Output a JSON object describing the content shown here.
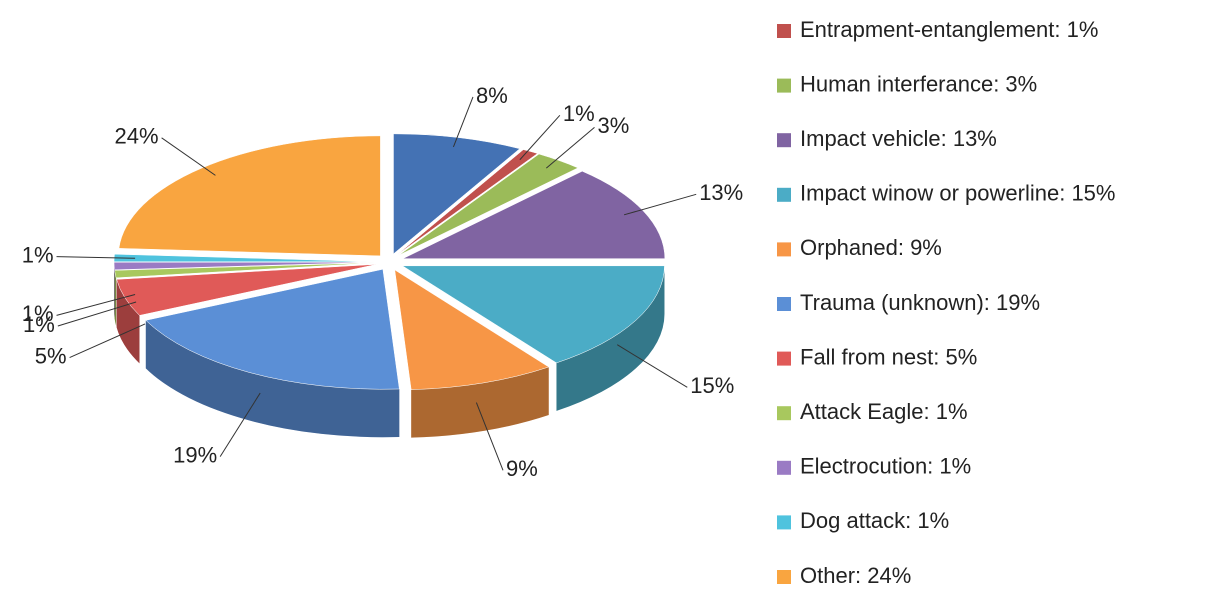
{
  "chart_data": {
    "type": "pie3d",
    "categories": [
      null,
      "Entrapment-entanglement: 1%",
      "Human interferance: 3%",
      "Impact vehicle: 13%",
      "Impact winow or powerline: 15%",
      "Orphaned: 9%",
      "Trauma (unknown): 19%",
      "Fall from nest: 5%",
      "Attack Eagle: 1%",
      "Electrocution: 1%",
      "Dog attack: 1%",
      "Other: 24%"
    ],
    "values": [
      8,
      1,
      3,
      13,
      15,
      9,
      19,
      5,
      1,
      1,
      1,
      24
    ],
    "value_labels": [
      "8%",
      "1%",
      "3%",
      "13%",
      "15%",
      "9%",
      "19%",
      "5%",
      "1%",
      "1%",
      "1%",
      "24%"
    ],
    "colors": [
      "#4472b4",
      "#c0504d",
      "#9bbb59",
      "#8064a2",
      "#4bacc6",
      "#f79646",
      "#5b8fd6",
      "#e05a58",
      "#a8c85e",
      "#9a7bc4",
      "#4fc3de",
      "#f9a540"
    ],
    "legend": "right"
  }
}
